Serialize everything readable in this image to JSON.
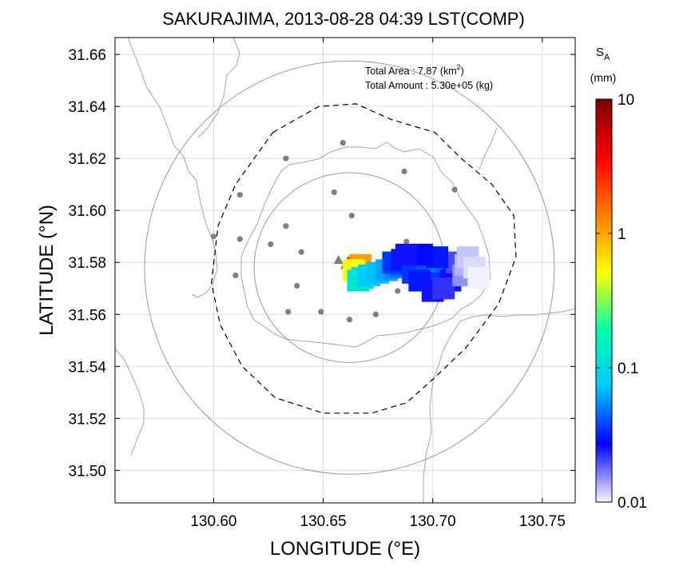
{
  "chart_data": {
    "type": "heatmap",
    "title": "SAKURAJIMA, 2013-08-28 04:39 LST(COMP)",
    "xlabel": "LONGITUDE (°E)",
    "ylabel": "LATITUDE (°N)",
    "xlim": [
      130.555,
      130.765
    ],
    "ylim": [
      31.4875,
      31.6665
    ],
    "xticks": [
      130.6,
      130.65,
      130.7,
      130.75
    ],
    "xtick_labels": [
      "130.60",
      "130.65",
      "130.70",
      "130.75"
    ],
    "yticks": [
      31.5,
      31.52,
      31.54,
      31.56,
      31.58,
      31.6,
      31.62,
      31.64,
      31.66
    ],
    "ytick_labels": [
      "31.50",
      "31.52",
      "31.54",
      "31.56",
      "31.58",
      "31.60",
      "31.62",
      "31.64",
      "31.66"
    ],
    "grid": true,
    "annotation": {
      "area_label": "Total Area   : 7.87 (km",
      "area_sup": "2",
      "area_close": ")",
      "amount_label": "Total Amount : 5.30e+05 (kg)"
    },
    "colorbar": {
      "title": "S",
      "title_sub": "A",
      "unit": "(mm)",
      "scale": "log",
      "range": [
        0.01,
        10
      ],
      "tick_values": [
        0.01,
        0.1,
        1,
        10
      ],
      "tick_labels": [
        "0.01",
        "0.1",
        "1",
        "10"
      ],
      "stops": [
        "#f2f2ff",
        "#0000ff",
        "#00c8ff",
        "#00ffaa",
        "#ffff00",
        "#ff7f00",
        "#ff0000",
        "#800000"
      ]
    },
    "range_circles": [
      {
        "center": [
          130.662,
          31.578
        ],
        "radius_lon": 0.0935,
        "radius_lat": 0.0795
      },
      {
        "center": [
          130.662,
          31.578
        ],
        "radius_lon": 0.0435,
        "radius_lat": 0.0365
      }
    ],
    "boundary": [
      [
        130.627,
        31.63
      ],
      [
        130.648,
        31.64
      ],
      [
        130.665,
        31.641
      ],
      [
        130.681,
        31.635
      ],
      [
        130.701,
        31.63
      ],
      [
        130.713,
        31.62
      ],
      [
        130.727,
        31.61
      ],
      [
        130.737,
        31.598
      ],
      [
        130.738,
        31.582
      ],
      [
        130.73,
        31.564
      ],
      [
        130.715,
        31.547
      ],
      [
        130.7,
        31.535
      ],
      [
        130.688,
        31.526
      ],
      [
        130.672,
        31.522
      ],
      [
        130.65,
        31.522
      ],
      [
        130.628,
        31.528
      ],
      [
        130.613,
        31.54
      ],
      [
        130.603,
        31.556
      ],
      [
        130.599,
        31.572
      ],
      [
        130.602,
        31.594
      ],
      [
        130.61,
        31.61
      ]
    ],
    "stations": [
      [
        130.659,
        31.626
      ],
      [
        130.633,
        31.62
      ],
      [
        130.687,
        31.615
      ],
      [
        130.612,
        31.606
      ],
      [
        130.655,
        31.607
      ],
      [
        130.71,
        31.608
      ],
      [
        130.663,
        31.598
      ],
      [
        130.633,
        31.594
      ],
      [
        130.6,
        31.59
      ],
      [
        130.612,
        31.589
      ],
      [
        130.626,
        31.587
      ],
      [
        130.64,
        31.584
      ],
      [
        130.688,
        31.588
      ],
      [
        130.701,
        31.584
      ],
      [
        130.61,
        31.575
      ],
      [
        130.638,
        31.571
      ],
      [
        130.684,
        31.569
      ],
      [
        130.634,
        31.561
      ],
      [
        130.649,
        31.561
      ],
      [
        130.674,
        31.56
      ],
      [
        130.662,
        31.558
      ]
    ],
    "vents": [
      [
        130.657,
        31.581
      ],
      [
        130.66,
        31.579
      ],
      [
        130.664,
        31.58
      ]
    ],
    "plume": {
      "cell_lon": 0.0023,
      "cell_lat": 0.0019,
      "cells": [
        {
          "lon": 130.666,
          "lat": 31.578,
          "value": 2.5
        },
        {
          "lon": 130.667,
          "lat": 31.579,
          "value": 1.1
        },
        {
          "lon": 130.664,
          "lat": 31.577,
          "value": 0.5
        },
        {
          "lon": 130.668,
          "lat": 31.574,
          "value": 0.1
        },
        {
          "lon": 130.666,
          "lat": 31.573,
          "value": 0.12
        },
        {
          "lon": 130.671,
          "lat": 31.575,
          "value": 0.08
        },
        {
          "lon": 130.675,
          "lat": 31.576,
          "value": 0.07
        },
        {
          "lon": 130.679,
          "lat": 31.577,
          "value": 0.06
        },
        {
          "lon": 130.683,
          "lat": 31.578,
          "value": 0.05
        },
        {
          "lon": 130.686,
          "lat": 31.579,
          "value": 0.04
        },
        {
          "lon": 130.682,
          "lat": 31.58,
          "value": 0.035
        },
        {
          "lon": 130.686,
          "lat": 31.581,
          "value": 0.03
        },
        {
          "lon": 130.691,
          "lat": 31.58,
          "value": 0.04
        },
        {
          "lon": 130.695,
          "lat": 31.578,
          "value": 0.05
        },
        {
          "lon": 130.691,
          "lat": 31.576,
          "value": 0.035
        },
        {
          "lon": 130.697,
          "lat": 31.574,
          "value": 0.045
        },
        {
          "lon": 130.7,
          "lat": 31.576,
          "value": 0.06
        },
        {
          "lon": 130.698,
          "lat": 31.579,
          "value": 0.04
        },
        {
          "lon": 130.703,
          "lat": 31.574,
          "value": 0.05
        },
        {
          "lon": 130.706,
          "lat": 31.577,
          "value": 0.045
        },
        {
          "lon": 130.702,
          "lat": 31.572,
          "value": 0.035
        },
        {
          "lon": 130.708,
          "lat": 31.573,
          "value": 0.03
        },
        {
          "lon": 130.71,
          "lat": 31.577,
          "value": 0.025
        },
        {
          "lon": 130.711,
          "lat": 31.58,
          "value": 0.02
        },
        {
          "lon": 130.702,
          "lat": 31.582,
          "value": 0.03
        },
        {
          "lon": 130.695,
          "lat": 31.583,
          "value": 0.028
        },
        {
          "lon": 130.688,
          "lat": 31.583,
          "value": 0.025
        },
        {
          "lon": 130.694,
          "lat": 31.573,
          "value": 0.03
        },
        {
          "lon": 130.7,
          "lat": 31.569,
          "value": 0.025
        },
        {
          "lon": 130.705,
          "lat": 31.57,
          "value": 0.022
        },
        {
          "lon": 130.714,
          "lat": 31.575,
          "value": 0.015
        },
        {
          "lon": 130.715,
          "lat": 31.579,
          "value": 0.013
        },
        {
          "lon": 130.716,
          "lat": 31.582,
          "value": 0.012
        },
        {
          "lon": 130.719,
          "lat": 31.578,
          "value": 0.011
        },
        {
          "lon": 130.721,
          "lat": 31.574,
          "value": 0.01
        }
      ]
    }
  }
}
